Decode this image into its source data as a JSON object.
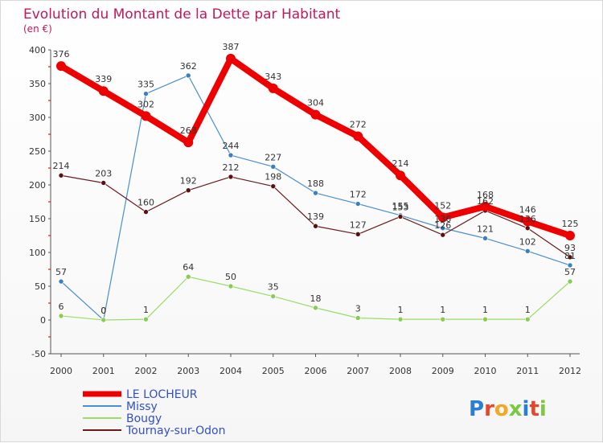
{
  "chart_data": {
    "type": "line",
    "title": "Evolution du Montant de la Dette par Habitant",
    "subtitle": "(en €)",
    "xlabel": "",
    "ylabel": "",
    "categories": [
      "2000",
      "2001",
      "2002",
      "2003",
      "2004",
      "2005",
      "2006",
      "2007",
      "2008",
      "2009",
      "2010",
      "2011",
      "2012"
    ],
    "ylim": [
      -50,
      400
    ],
    "yticks": [
      -50,
      0,
      50,
      100,
      150,
      200,
      250,
      300,
      350,
      400
    ],
    "grid": false,
    "legend_position": "bottom-left",
    "series": [
      {
        "name": "LE LOCHEUR",
        "color": "#ee0000",
        "values": [
          376,
          339,
          302,
          263,
          387,
          343,
          304,
          272,
          214,
          152,
          168,
          146,
          125
        ]
      },
      {
        "name": "Missy",
        "color": "#4a8fcf",
        "values": [
          57,
          0,
          335,
          362,
          244,
          227,
          188,
          172,
          155,
          136,
          121,
          102,
          81
        ]
      },
      {
        "name": "Bougy",
        "color": "#99dd66",
        "values": [
          6,
          0,
          1,
          64,
          50,
          35,
          18,
          3,
          1,
          1,
          1,
          1,
          57
        ]
      },
      {
        "name": "Tournay-sur-Odon",
        "color": "#6b1a1a",
        "values": [
          214,
          203,
          160,
          192,
          212,
          198,
          139,
          127,
          153,
          126,
          162,
          136,
          93
        ]
      }
    ]
  },
  "branding": {
    "logo_text": "Proxiti"
  }
}
